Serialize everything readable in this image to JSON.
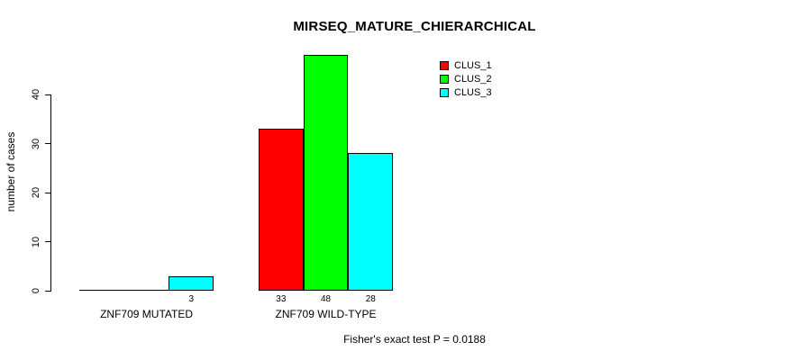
{
  "chart_data": {
    "type": "bar",
    "title": "MIRSEQ_MATURE_CHIERARCHICAL",
    "xlabel": "",
    "ylabel": "number of cases",
    "categories": [
      "ZNF709 MUTATED",
      "ZNF709 WILD-TYPE"
    ],
    "series": [
      {
        "name": "CLUS_1",
        "color": "#FF0000",
        "values": [
          0,
          33
        ]
      },
      {
        "name": "CLUS_2",
        "color": "#00FF00",
        "values": [
          0,
          48
        ]
      },
      {
        "name": "CLUS_3",
        "color": "#00FFFF",
        "values": [
          3,
          28
        ]
      }
    ],
    "bar_value_labels": {
      "shown_when": "value > 0",
      "values": [
        [
          null,
          null,
          3
        ],
        [
          33,
          48,
          28
        ]
      ]
    },
    "yticks": [
      0,
      10,
      20,
      30,
      40
    ],
    "ylim": [
      0,
      48
    ],
    "grid": false,
    "legend_position": "top-right-inside",
    "bar_border_color": "#000000",
    "background_color": "#FFFFFF",
    "annotation": "Fisher's exact test P = 0.0188"
  },
  "footer": "Fisher's exact test P = 0.0188"
}
